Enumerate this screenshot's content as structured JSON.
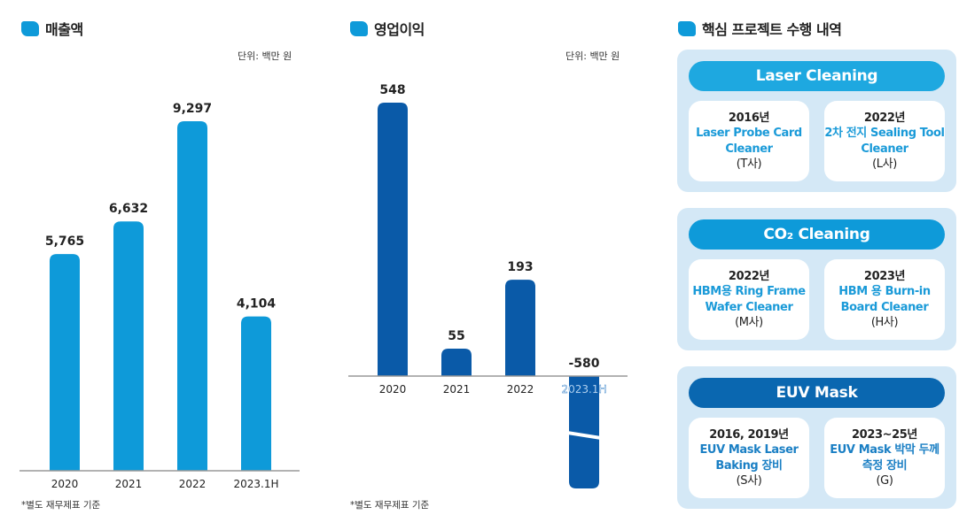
{
  "colors": {
    "accent": "#0e9ad9",
    "dark": "#0a5aa8",
    "panel": "#d4e8f6"
  },
  "chart_data": [
    {
      "type": "bar",
      "title": "매출액",
      "unit": "단위: 백만 원",
      "note": "*별도 재무제표 기준",
      "categories": [
        "2020",
        "2021",
        "2022",
        "2023.1H"
      ],
      "values": [
        5765,
        6632,
        9297,
        4104
      ],
      "labels": [
        "5,765",
        "6,632",
        "9,297",
        "4,104"
      ],
      "color": "#0e9ad9"
    },
    {
      "type": "bar",
      "title": "영업이익",
      "unit": "단위: 백만 원",
      "note": "*별도 재무제표 기준",
      "categories": [
        "2020",
        "2021",
        "2022",
        "2023.1H"
      ],
      "values": [
        548,
        55,
        193,
        -580
      ],
      "labels": [
        "548",
        "55",
        "193",
        "-580"
      ],
      "color": "#0a5aa8",
      "axis_break": true
    }
  ],
  "projects": {
    "title": "핵심 프로젝트 수행 내역",
    "groups": [
      {
        "name": "Laser Cleaning",
        "color": "#1ea8e0",
        "cards": [
          {
            "year": "2016년",
            "name": "Laser Probe Card Cleaner",
            "client": "(T사)"
          },
          {
            "year": "2022년",
            "name": "2차 전지 Sealing Tool Cleaner",
            "client": "(L사)"
          }
        ]
      },
      {
        "name": "CO₂ Cleaning",
        "color": "#0e9ad9",
        "cards": [
          {
            "year": "2022년",
            "name": "HBM용 Ring Frame Wafer Cleaner",
            "client": "(M사)"
          },
          {
            "year": "2023년",
            "name": "HBM 용 Burn-in Board Cleaner",
            "client": "(H사)"
          }
        ]
      },
      {
        "name": "EUV Mask",
        "color": "#0a67b0",
        "cards": [
          {
            "year": "2016, 2019년",
            "name": "EUV Mask Laser Baking 장비",
            "client": "(S사)"
          },
          {
            "year": "2023~25년",
            "name": "EUV Mask 박막 두께 측정 장비",
            "client": "(G)"
          }
        ]
      }
    ]
  }
}
